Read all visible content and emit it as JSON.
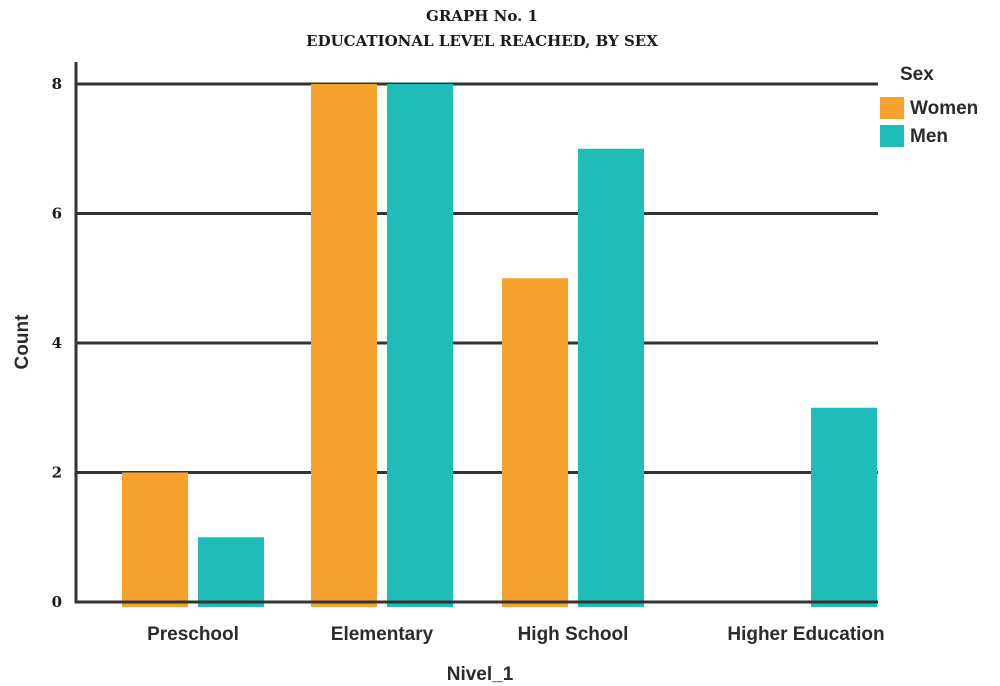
{
  "chart_data": {
    "type": "bar",
    "title_line1": "GRAPH No. 1",
    "title_line2": "EDUCATIONAL LEVEL REACHED, BY SEX",
    "xlabel": "Nivel_1",
    "ylabel": "Count",
    "categories": [
      "Preschool",
      "Elementary",
      "High School",
      "Higher Education"
    ],
    "series": [
      {
        "name": "Women",
        "color": "#F6A22D",
        "values": [
          2,
          8,
          5,
          0
        ]
      },
      {
        "name": "Men",
        "color": "#1FBDB8",
        "values": [
          1,
          8,
          7,
          3
        ]
      }
    ],
    "ylim": [
      0,
      8
    ],
    "yticks": [
      "0",
      "2",
      "4",
      "6",
      "8"
    ],
    "grid": true,
    "legend": {
      "title": "Sex",
      "placement": "top-right"
    }
  }
}
